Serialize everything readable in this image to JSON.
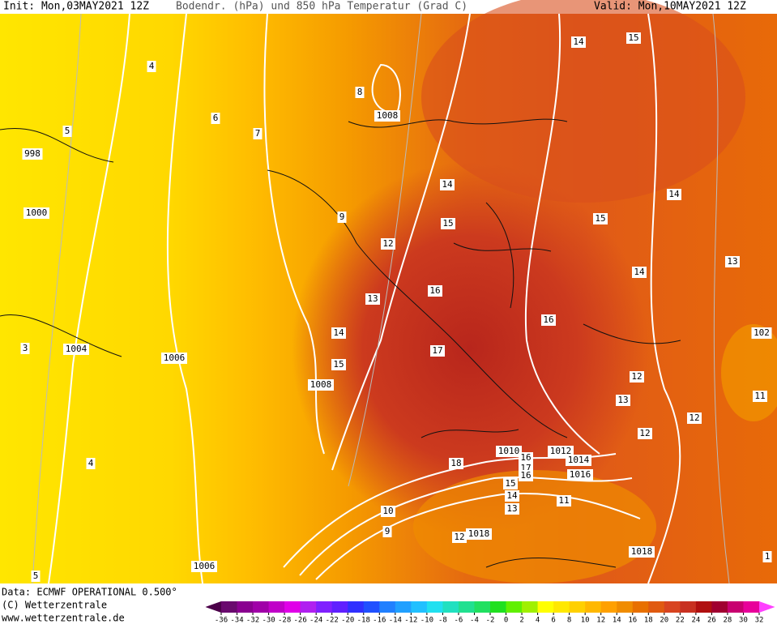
{
  "header": {
    "init": "Init: Mon,03MAY2021 12Z",
    "description": "Bodendr. (hPa) und 850 hPa Temperatur (Grad C)",
    "valid": "Valid: Mon,10MAY2021 12Z"
  },
  "map": {
    "contour_labels": [
      "4",
      "6",
      "7",
      "5",
      "998",
      "1000",
      "8",
      "1008",
      "14",
      "15",
      "14",
      "15",
      "15",
      "14",
      "9",
      "12",
      "13",
      "14",
      "16",
      "13",
      "16",
      "14",
      "102",
      "3",
      "1004",
      "1006",
      "17",
      "15",
      "1008",
      "12",
      "13",
      "11",
      "12",
      "12",
      "1010",
      "1012",
      "1014",
      "18",
      "16",
      "17",
      "1016",
      "16",
      "4",
      "15",
      "14",
      "13",
      "11",
      "10",
      "9",
      "12",
      "1018",
      "1018",
      "1006",
      "5",
      "1"
    ]
  },
  "footer": {
    "source": "Data: ECMWF OPERATIONAL 0.500°",
    "copyright": "(C) Wetterzentrale",
    "url": "www.wetterzentrale.de"
  },
  "legend": {
    "ticks": [
      -36,
      -34,
      -32,
      -30,
      -28,
      -26,
      -24,
      -22,
      -20,
      -18,
      -16,
      -14,
      -12,
      -10,
      -8,
      -6,
      -4,
      -2,
      0,
      2,
      4,
      6,
      8,
      10,
      12,
      14,
      16,
      18,
      20,
      22,
      24,
      26,
      28,
      30,
      32
    ],
    "colors": [
      "#4b0049",
      "#6a0a6e",
      "#8a0090",
      "#a000a8",
      "#c000c8",
      "#e000e8",
      "#b020f0",
      "#8020ff",
      "#6020ff",
      "#3030ff",
      "#2050ff",
      "#2080ff",
      "#20a0ff",
      "#20c0ff",
      "#20e0f0",
      "#20e0c0",
      "#20e090",
      "#20e060",
      "#20e020",
      "#60f000",
      "#a0f000",
      "#ffff00",
      "#ffe800",
      "#ffd000",
      "#ffb800",
      "#ffa000",
      "#f08c00",
      "#e87000",
      "#e05a10",
      "#d84420",
      "#c83020",
      "#b01010",
      "#a00030",
      "#c80070",
      "#e8009a",
      "#ff40ff"
    ]
  }
}
